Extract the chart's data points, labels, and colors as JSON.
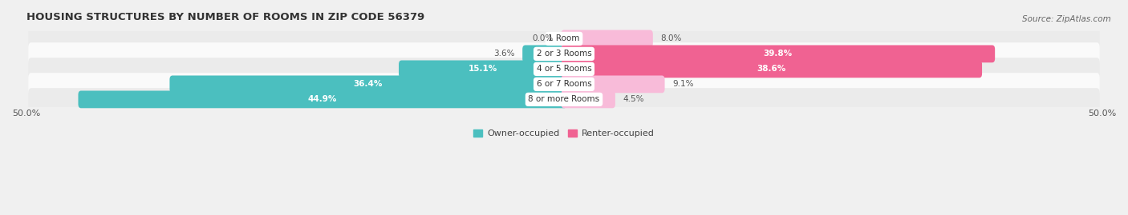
{
  "title": "HOUSING STRUCTURES BY NUMBER OF ROOMS IN ZIP CODE 56379",
  "source": "Source: ZipAtlas.com",
  "categories": [
    "1 Room",
    "2 or 3 Rooms",
    "4 or 5 Rooms",
    "6 or 7 Rooms",
    "8 or more Rooms"
  ],
  "owner_values": [
    0.0,
    3.6,
    15.1,
    36.4,
    44.9
  ],
  "renter_values": [
    8.0,
    39.8,
    38.6,
    9.1,
    4.5
  ],
  "owner_color": "#4BBFBF",
  "renter_color_dark": "#F06292",
  "renter_color_light": "#F8BBD9",
  "owner_label": "Owner-occupied",
  "renter_label": "Renter-occupied",
  "bg_color": "#F0F0F0",
  "row_color_odd": "#FAFAFA",
  "row_color_even": "#EBEBEB",
  "title_fontsize": 9.5,
  "source_fontsize": 7.5,
  "label_fontsize": 7.5,
  "tick_fontsize": 8,
  "xlim": [
    -50,
    50
  ],
  "renter_dark_rows": [
    1,
    2
  ]
}
